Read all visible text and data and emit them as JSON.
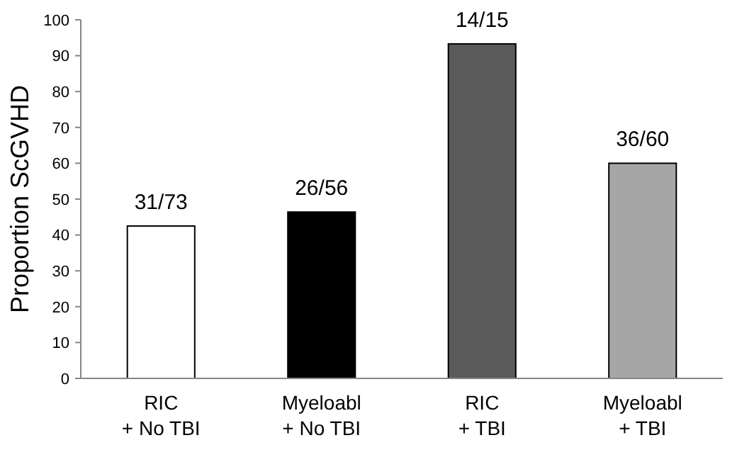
{
  "chart_data": {
    "type": "bar",
    "ylabel": "Proportion ScGVHD",
    "categories": [
      "RIC\n+ No TBI",
      "Myeloabl\n+ No TBI",
      "RIC\n+ TBI",
      "Myeloabl\n+ TBI"
    ],
    "values": [
      42.5,
      46.4,
      93.3,
      60
    ],
    "colors": [
      "#ffffff",
      "#000000",
      "#5a5a5a",
      "#a6a6a6"
    ],
    "value_labels": [
      "31/73",
      "26/56",
      "14/15",
      "36/60"
    ],
    "ylim": [
      0,
      100
    ],
    "yticks": [
      0,
      10,
      20,
      30,
      40,
      50,
      60,
      70,
      80,
      90,
      100
    ],
    "grid": false
  }
}
